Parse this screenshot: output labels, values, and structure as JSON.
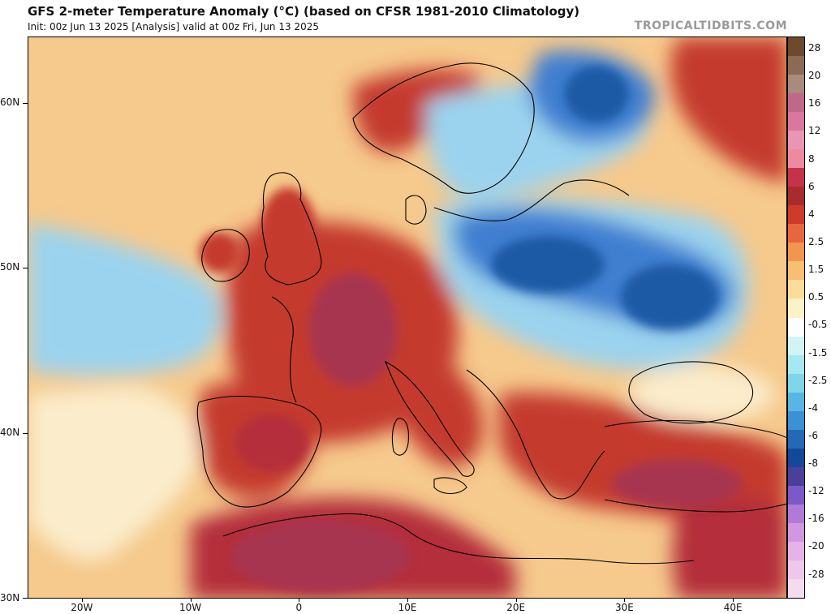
{
  "header": {
    "title": "GFS 2-meter Temperature Anomaly (°C) (based on CFSR 1981-2010 Climatology)",
    "subtitle": "Init: 00z Jun 13 2025   [Analysis]   valid at 00z Fri, Jun 13 2025",
    "watermark": "TROPICALTIDBITS.COM"
  },
  "map": {
    "lon_range": [
      -25,
      45
    ],
    "lat_range": [
      30,
      64
    ],
    "lat_ticks": [
      {
        "value": 60,
        "label": "60N"
      },
      {
        "value": 50,
        "label": "50N"
      },
      {
        "value": 40,
        "label": "40N"
      },
      {
        "value": 30,
        "label": "30N"
      }
    ],
    "lon_ticks": [
      {
        "value": -20,
        "label": "20W"
      },
      {
        "value": -10,
        "label": "10W"
      },
      {
        "value": 0,
        "label": "0"
      },
      {
        "value": 10,
        "label": "10E"
      },
      {
        "value": 20,
        "label": "20E"
      },
      {
        "value": 30,
        "label": "30E"
      },
      {
        "value": 40,
        "label": "40E"
      }
    ],
    "colors": {
      "ocean_warm": "#f6c98c",
      "very_warm": "#c43a2e",
      "hot": "#b42f3a",
      "extreme": "#a8344f",
      "cold": "#3f7fd0",
      "very_cold": "#1e5aa6",
      "cool": "#9bd3ee",
      "neutral": "#fbeccb"
    }
  },
  "colorbar": {
    "labels": [
      "28",
      "20",
      "16",
      "12",
      "8",
      "6",
      "4",
      "2.5",
      "1.5",
      "0.5",
      "-0.5",
      "-1.5",
      "-2.5",
      "-4",
      "-6",
      "-8",
      "-12",
      "-16",
      "-20",
      "-28"
    ],
    "colors": [
      "#6d4a2e",
      "#8b6b55",
      "#a88b7c",
      "#c0688a",
      "#d9779e",
      "#e896b4",
      "#ee8aa0",
      "#c4334a",
      "#a82b2e",
      "#cf3b2a",
      "#e8663d",
      "#f0964f",
      "#f6bf74",
      "#fbdc98",
      "#fdf1c7",
      "#ffffff",
      "#d3f3f7",
      "#a6e8ef",
      "#7fd5ea",
      "#58b6e4",
      "#3a91d4",
      "#2469b8",
      "#13489a",
      "#4a3f9a",
      "#7a5ac6",
      "#b07ad8",
      "#cf98e0",
      "#e4b4e8",
      "#eec8ec",
      "#f4dcef"
    ]
  }
}
